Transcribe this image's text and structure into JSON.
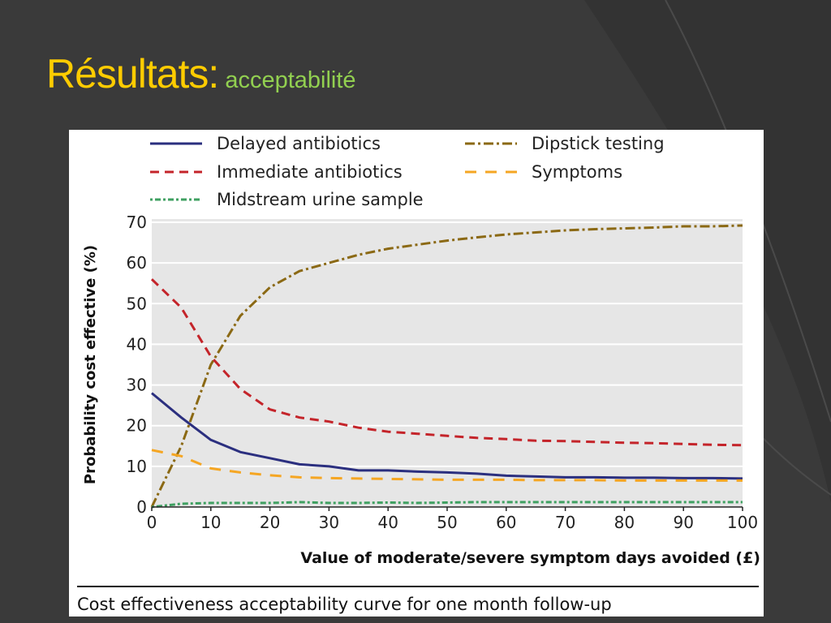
{
  "slide": {
    "title_main": "Résultats:",
    "title_sub": "acceptabilité"
  },
  "colors": {
    "background": "#3a3a3a",
    "title_main": "#ffcc00",
    "title_sub": "#92d050",
    "plot_area": "#e6e6e6"
  },
  "caption": "Cost effectiveness acceptability curve for one month follow-up",
  "chart_data": {
    "type": "line",
    "xlabel": "Value of moderate/severe symptom days avoided (£)",
    "ylabel": "Probability cost effective (%)",
    "xlim": [
      0,
      100
    ],
    "ylim": [
      0,
      70
    ],
    "xticks": [
      0,
      10,
      20,
      30,
      40,
      50,
      60,
      70,
      80,
      90,
      100
    ],
    "yticks": [
      0,
      10,
      20,
      30,
      40,
      50,
      60,
      70
    ],
    "grid": "horizontal",
    "legend_position": "top",
    "x": [
      0,
      5,
      10,
      15,
      20,
      25,
      30,
      35,
      40,
      45,
      50,
      55,
      60,
      65,
      70,
      75,
      80,
      85,
      90,
      95,
      100
    ],
    "series": [
      {
        "name": "Delayed antibiotics",
        "color": "#2b2f7f",
        "dash": "solid",
        "values": [
          28,
          22,
          16.5,
          13.5,
          12,
          10.5,
          10,
          9,
          9,
          8.7,
          8.5,
          8.2,
          7.7,
          7.5,
          7.3,
          7.3,
          7.2,
          7.2,
          7.1,
          7.1,
          7
        ]
      },
      {
        "name": "Dipstick testing",
        "color": "#8b6914",
        "dash": "dashdot",
        "values": [
          0,
          15,
          35,
          47,
          54,
          58,
          60,
          62,
          63.5,
          64.5,
          65.5,
          66.3,
          67,
          67.5,
          68,
          68.3,
          68.5,
          68.7,
          69,
          69,
          69.2
        ]
      },
      {
        "name": "Immediate antibiotics",
        "color": "#c4242a",
        "dash": "dashed",
        "values": [
          56,
          49,
          37,
          29,
          24,
          22,
          21,
          19.5,
          18.5,
          18,
          17.5,
          17,
          16.7,
          16.3,
          16.2,
          16,
          15.8,
          15.7,
          15.5,
          15.3,
          15.2
        ]
      },
      {
        "name": "Symptoms",
        "color": "#f5a623",
        "dash": "longdash",
        "values": [
          14,
          12.5,
          9.5,
          8.5,
          7.8,
          7.3,
          7.1,
          7,
          6.9,
          6.8,
          6.7,
          6.7,
          6.7,
          6.6,
          6.6,
          6.6,
          6.5,
          6.5,
          6.5,
          6.5,
          6.5
        ]
      },
      {
        "name": "Midstream urine sample",
        "color": "#3fa061",
        "dash": "dotdash",
        "values": [
          0,
          0.8,
          1,
          1,
          1,
          1.2,
          1,
          1,
          1.1,
          1,
          1.1,
          1.2,
          1.2,
          1.2,
          1.2,
          1.2,
          1.2,
          1.2,
          1.2,
          1.2,
          1.2
        ]
      }
    ]
  }
}
